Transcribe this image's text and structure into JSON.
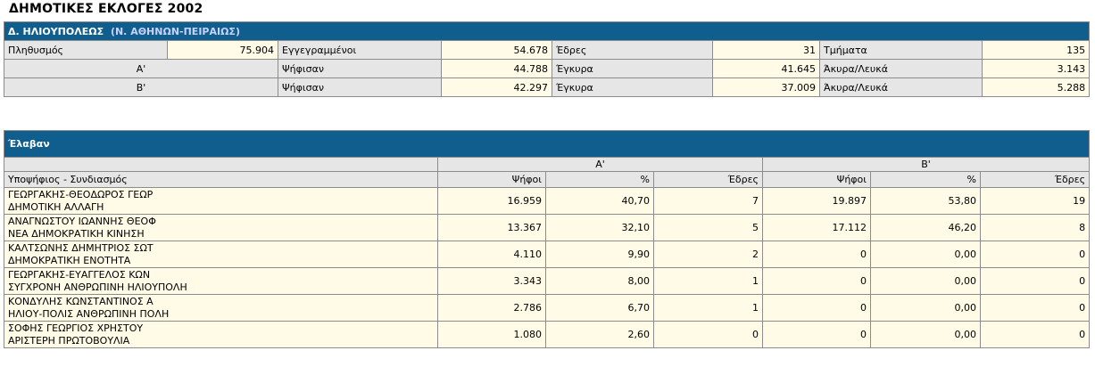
{
  "title": "ΔΗΜΟΤΙΚΕΣ ΕΚΛΟΓΕΣ 2002",
  "summary": {
    "municipality": "Δ. ΗΛΙΟΥΠΟΛΕΩΣ",
    "prefecture": "(Ν. ΑΘΗΝΩΝ-ΠΕΙΡΑΙΩΣ)",
    "row1": {
      "population_label": "Πληθυσμός",
      "population": "75.904",
      "registered_label": "Εγγεγραμμένοι",
      "registered": "54.678",
      "seats_label": "Έδρες",
      "seats": "31",
      "sections_label": "Τμήματα",
      "sections": "135"
    },
    "rounds": [
      {
        "round": "Α'",
        "voted_label": "Ψήφισαν",
        "voted": "44.788",
        "valid_label": "Έγκυρα",
        "valid": "41.645",
        "invalid_label": "Άκυρα/Λευκά",
        "invalid": "3.143"
      },
      {
        "round": "Β'",
        "voted_label": "Ψήφισαν",
        "voted": "42.297",
        "valid_label": "Έγκυρα",
        "valid": "37.009",
        "invalid_label": "Άκυρα/Λευκά",
        "invalid": "5.288"
      }
    ]
  },
  "results": {
    "header": "Έλαβαν",
    "round_a": "Α'",
    "round_b": "Β'",
    "col_candidate": "Υποψήφιος  -  Συνδιασμός",
    "col_votes": "Ψήφοι",
    "col_pct": "%",
    "col_seats": "Έδρες",
    "rows": [
      {
        "name": "ΓΕΩΡΓΑΚΗΣ-ΘΕΟΔΩΡΟΣ ΓΕΩΡ",
        "party": "ΔΗΜΟΤΙΚΗ ΑΛΛΑΓΗ",
        "a_votes": "16.959",
        "a_pct": "40,70",
        "a_seats": "7",
        "b_votes": "19.897",
        "b_pct": "53,80",
        "b_seats": "19"
      },
      {
        "name": "ΑΝΑΓΝΩΣΤΟΥ ΙΩΑΝΝΗΣ ΘΕΟΦ",
        "party": "ΝΕΑ ΔΗΜΟΚΡΑΤΙΚΗ ΚΙΝΗΣΗ",
        "a_votes": "13.367",
        "a_pct": "32,10",
        "a_seats": "5",
        "b_votes": "17.112",
        "b_pct": "46,20",
        "b_seats": "8"
      },
      {
        "name": "ΚΑΛΤΣΩΝΗΣ ΔΗΜΗΤΡΙΟΣ ΣΩΤ",
        "party": "ΔΗΜΟΚΡΑΤΙΚΗ ΕΝΟΤΗΤΑ",
        "a_votes": "4.110",
        "a_pct": "9,90",
        "a_seats": "2",
        "b_votes": "0",
        "b_pct": "0,00",
        "b_seats": "0"
      },
      {
        "name": "ΓΕΩΡΓΑΚΗΣ-ΕΥΑΓΓΕΛΟΣ ΚΩΝ",
        "party": "ΣΥΓΧΡΟΝΗ ΑΝΘΡΩΠΙΝΗ ΗΛΙΟΥΠΟΛΗ",
        "a_votes": "3.343",
        "a_pct": "8,00",
        "a_seats": "1",
        "b_votes": "0",
        "b_pct": "0,00",
        "b_seats": "0"
      },
      {
        "name": "ΚΟΝΔΥΛΗΣ ΚΩΝΣΤΑΝΤΙΝΟΣ Α",
        "party": "ΗΛΙΟΥ-ΠΟΛΙΣ ΑΝΘΡΩΠΙΝΗ ΠΟΛΗ",
        "a_votes": "2.786",
        "a_pct": "6,70",
        "a_seats": "1",
        "b_votes": "0",
        "b_pct": "0,00",
        "b_seats": "0"
      },
      {
        "name": "ΣΟΦΗΣ ΓΕΩΡΓΙΟΣ ΧΡΗΣΤΟΥ",
        "party": "ΑΡΙΣΤΕΡΗ ΠΡΩΤΟΒΟΥΛΙΑ",
        "a_votes": "1.080",
        "a_pct": "2,60",
        "a_seats": "0",
        "b_votes": "0",
        "b_pct": "0,00",
        "b_seats": "0"
      }
    ]
  }
}
